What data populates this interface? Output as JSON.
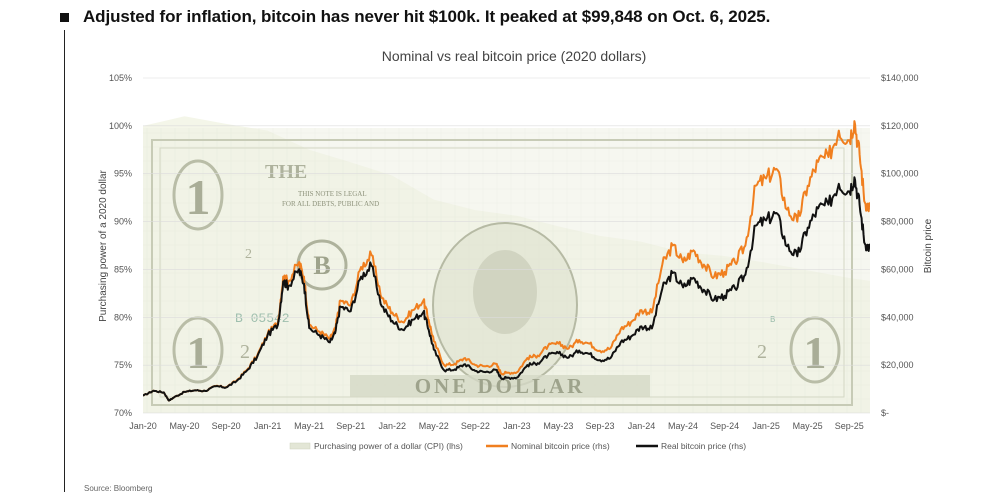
{
  "headline": "Adjusted for inflation, bitcoin has never hit $100k. It peaked at $99,848 on Oct. 6, 2025.",
  "source": "Source: Bloomberg",
  "colors": {
    "nominal": "#f07f1f",
    "real": "#111111",
    "cpi": "#dfe3cf",
    "banknote": "#c9ccb8"
  },
  "chart_data": {
    "type": "line",
    "title": "Nominal vs real bitcoin price (2020 dollars)",
    "ylabel_left": "Purchasing power of a 2020 dollar",
    "ylabel_right": "Bitcoin price",
    "ylim_left": [
      70,
      105
    ],
    "ylim_right": [
      0,
      140000
    ],
    "yticks_left": [
      "105%",
      "100%",
      "95%",
      "90%",
      "85%",
      "80%",
      "75%",
      "70%"
    ],
    "yticks_right": [
      "$140,000",
      "$120,000",
      "$100,000",
      "$80,000",
      "$60,000",
      "$40,000",
      "$20,000",
      "$-"
    ],
    "xlim_months": [
      0,
      70
    ],
    "xticks": [
      {
        "label": "Jan-20",
        "m": 0
      },
      {
        "label": "May-20",
        "m": 4
      },
      {
        "label": "Sep-20",
        "m": 8
      },
      {
        "label": "Jan-21",
        "m": 12
      },
      {
        "label": "May-21",
        "m": 16
      },
      {
        "label": "Sep-21",
        "m": 20
      },
      {
        "label": "Jan-22",
        "m": 24
      },
      {
        "label": "May-22",
        "m": 28
      },
      {
        "label": "Sep-22",
        "m": 32
      },
      {
        "label": "Jan-23",
        "m": 36
      },
      {
        "label": "May-23",
        "m": 40
      },
      {
        "label": "Sep-23",
        "m": 44
      },
      {
        "label": "Jan-24",
        "m": 48
      },
      {
        "label": "May-24",
        "m": 52
      },
      {
        "label": "Sep-24",
        "m": 56
      },
      {
        "label": "Jan-25",
        "m": 60
      },
      {
        "label": "May-25",
        "m": 64
      },
      {
        "label": "Sep-25",
        "m": 68
      }
    ],
    "legend": [
      "Purchasing power of a dollar (CPI) (lhs)",
      "Nominal bitcoin price (rhs)",
      "Real bitcoin price (rhs)"
    ],
    "series": [
      {
        "name": "Purchasing power of a dollar (CPI) (lhs)",
        "axis": "left",
        "points": [
          [
            0,
            100
          ],
          [
            2,
            100.5
          ],
          [
            4,
            101
          ],
          [
            8,
            100.2
          ],
          [
            12,
            99.5
          ],
          [
            16,
            97.5
          ],
          [
            20,
            96.2
          ],
          [
            24,
            94.8
          ],
          [
            28,
            92.3
          ],
          [
            32,
            91.2
          ],
          [
            36,
            90.6
          ],
          [
            40,
            89.5
          ],
          [
            44,
            88.5
          ],
          [
            48,
            87.9
          ],
          [
            52,
            86.8
          ],
          [
            56,
            86.4
          ],
          [
            60,
            85.7
          ],
          [
            64,
            84.9
          ],
          [
            68,
            84.1
          ],
          [
            70,
            83.8
          ]
        ]
      },
      {
        "name": "Nominal bitcoin price (rhs)",
        "axis": "right",
        "points": [
          [
            0,
            7200
          ],
          [
            1,
            9300
          ],
          [
            2,
            8600
          ],
          [
            2.5,
            5200
          ],
          [
            3,
            6600
          ],
          [
            4,
            8800
          ],
          [
            5,
            9500
          ],
          [
            6,
            9200
          ],
          [
            7,
            11300
          ],
          [
            8,
            10800
          ],
          [
            9,
            13500
          ],
          [
            10,
            18000
          ],
          [
            11,
            24000
          ],
          [
            12,
            33000
          ],
          [
            13,
            38000
          ],
          [
            13.5,
            57000
          ],
          [
            14,
            55000
          ],
          [
            15,
            63000
          ],
          [
            15.5,
            57000
          ],
          [
            16,
            37000
          ],
          [
            17,
            34000
          ],
          [
            18,
            31000
          ],
          [
            18.5,
            35000
          ],
          [
            19,
            47000
          ],
          [
            20,
            45000
          ],
          [
            21,
            61000
          ],
          [
            22,
            66000
          ],
          [
            23,
            48000
          ],
          [
            24,
            42000
          ],
          [
            25,
            38000
          ],
          [
            26,
            43000
          ],
          [
            27,
            47000
          ],
          [
            27.5,
            39000
          ],
          [
            28,
            30000
          ],
          [
            29,
            20000
          ],
          [
            30,
            20500
          ],
          [
            31,
            23000
          ],
          [
            32,
            20000
          ],
          [
            33,
            19500
          ],
          [
            34,
            20500
          ],
          [
            34.5,
            16500
          ],
          [
            35,
            16800
          ],
          [
            36,
            17000
          ],
          [
            37,
            23000
          ],
          [
            38,
            24000
          ],
          [
            39,
            28000
          ],
          [
            40,
            29000
          ],
          [
            41,
            27000
          ],
          [
            42,
            30500
          ],
          [
            43,
            29000
          ],
          [
            44,
            26000
          ],
          [
            45,
            27000
          ],
          [
            46,
            35000
          ],
          [
            47,
            38000
          ],
          [
            48,
            43000
          ],
          [
            49,
            42000
          ],
          [
            50,
            62000
          ],
          [
            51,
            70000
          ],
          [
            52,
            63000
          ],
          [
            53,
            68000
          ],
          [
            54,
            62000
          ],
          [
            55,
            57000
          ],
          [
            56,
            59000
          ],
          [
            57,
            63000
          ],
          [
            58,
            70000
          ],
          [
            59,
            95000
          ],
          [
            60,
            98000
          ],
          [
            61,
            102000
          ],
          [
            62,
            85000
          ],
          [
            63,
            80000
          ],
          [
            64,
            95000
          ],
          [
            65,
            105000
          ],
          [
            66,
            107000
          ],
          [
            67,
            118000
          ],
          [
            68,
            114000
          ],
          [
            68.5,
            122000
          ],
          [
            69,
            108000
          ],
          [
            69.5,
            88000
          ],
          [
            70,
            86000
          ]
        ]
      },
      {
        "name": "Real bitcoin price (rhs)",
        "axis": "right",
        "points": [
          [
            0,
            7200
          ],
          [
            1,
            9300
          ],
          [
            2,
            8600
          ],
          [
            2.5,
            5200
          ],
          [
            3,
            6600
          ],
          [
            4,
            8800
          ],
          [
            5,
            9500
          ],
          [
            6,
            9200
          ],
          [
            7,
            11200
          ],
          [
            8,
            10700
          ],
          [
            9,
            13300
          ],
          [
            10,
            17700
          ],
          [
            11,
            23500
          ],
          [
            12,
            32500
          ],
          [
            13,
            37000
          ],
          [
            13.5,
            55000
          ],
          [
            14,
            53000
          ],
          [
            15,
            60000
          ],
          [
            15.5,
            54000
          ],
          [
            16,
            35500
          ],
          [
            17,
            32500
          ],
          [
            18,
            29500
          ],
          [
            18.5,
            33300
          ],
          [
            19,
            44500
          ],
          [
            20,
            42500
          ],
          [
            21,
            57000
          ],
          [
            22,
            61500
          ],
          [
            23,
            44500
          ],
          [
            24,
            38500
          ],
          [
            25,
            34800
          ],
          [
            26,
            39000
          ],
          [
            27,
            42200
          ],
          [
            27.5,
            35000
          ],
          [
            28,
            26500
          ],
          [
            29,
            17800
          ],
          [
            30,
            18200
          ],
          [
            31,
            20400
          ],
          [
            32,
            17600
          ],
          [
            33,
            17100
          ],
          [
            34,
            18000
          ],
          [
            34.5,
            14500
          ],
          [
            35,
            14700
          ],
          [
            36,
            14800
          ],
          [
            37,
            20000
          ],
          [
            38,
            20800
          ],
          [
            39,
            24100
          ],
          [
            40,
            25000
          ],
          [
            41,
            23200
          ],
          [
            42,
            26100
          ],
          [
            43,
            24700
          ],
          [
            44,
            22100
          ],
          [
            45,
            22900
          ],
          [
            46,
            29600
          ],
          [
            47,
            32000
          ],
          [
            48,
            36200
          ],
          [
            49,
            35300
          ],
          [
            50,
            52000
          ],
          [
            51,
            58500
          ],
          [
            52,
            52500
          ],
          [
            53,
            56500
          ],
          [
            54,
            51500
          ],
          [
            55,
            47400
          ],
          [
            56,
            49000
          ],
          [
            57,
            52100
          ],
          [
            58,
            57800
          ],
          [
            59,
            78300
          ],
          [
            60,
            80500
          ],
          [
            61,
            83600
          ],
          [
            62,
            69700
          ],
          [
            63,
            65500
          ],
          [
            64,
            77500
          ],
          [
            65,
            85500
          ],
          [
            66,
            87100
          ],
          [
            67,
            95800
          ],
          [
            68,
            92600
          ],
          [
            68.5,
            98500
          ],
          [
            69,
            87000
          ],
          [
            69.5,
            70800
          ],
          [
            70,
            69000
          ]
        ]
      }
    ]
  }
}
